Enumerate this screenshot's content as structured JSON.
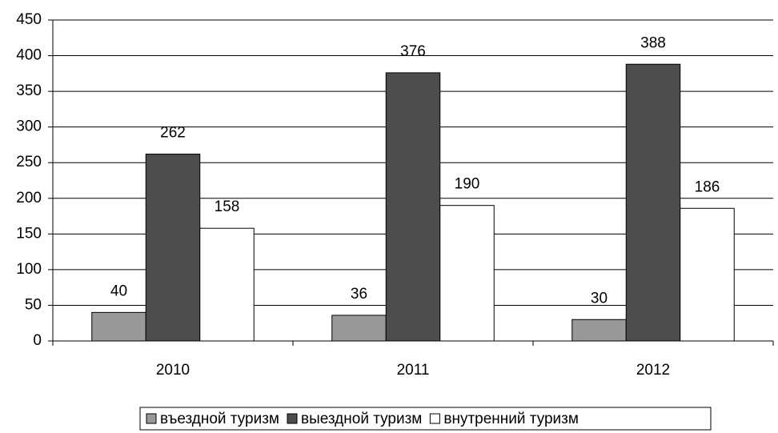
{
  "chart_data": {
    "type": "bar",
    "categories": [
      "2010",
      "2011",
      "2012"
    ],
    "series": [
      {
        "name": "въездной туризм",
        "color": "#999999",
        "values": [
          40,
          36,
          30
        ]
      },
      {
        "name": "выездной туризм",
        "color": "#4d4d4d",
        "values": [
          262,
          376,
          388
        ]
      },
      {
        "name": "внутренний туризм",
        "color": "#ffffff",
        "values": [
          158,
          190,
          186
        ]
      }
    ],
    "ylim": [
      0,
      450
    ],
    "yticks": [
      0,
      50,
      100,
      150,
      200,
      250,
      300,
      350,
      400,
      450
    ],
    "grid": true,
    "legend": "bottom"
  }
}
